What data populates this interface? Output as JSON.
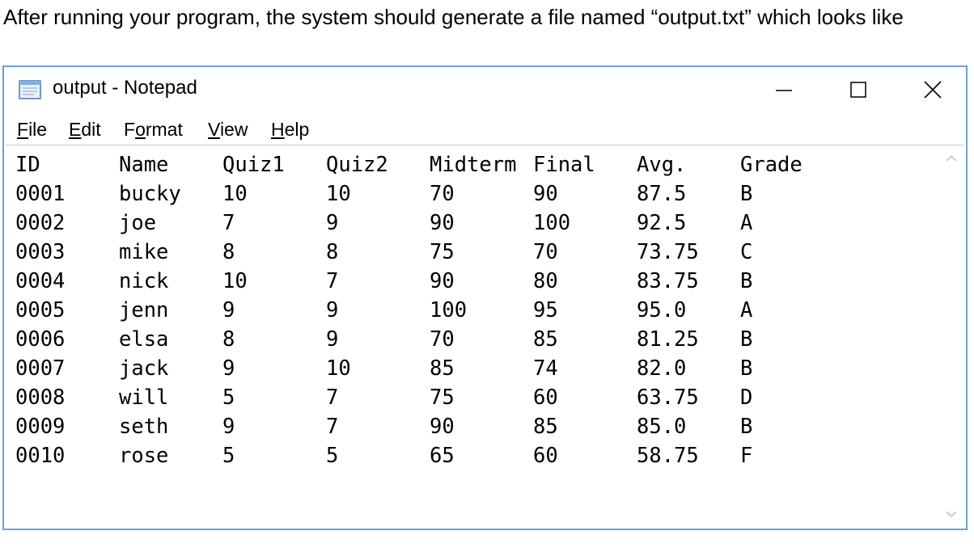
{
  "intro_text": "After running your program, the system should generate a file named “output.txt” which looks like",
  "window": {
    "title": "output - Notepad",
    "icon": "notepad-icon",
    "controls": {
      "minimize": "minimize-icon",
      "maximize": "maximize-icon",
      "close": "close-icon"
    }
  },
  "menu": {
    "items": [
      {
        "key": "file",
        "ul": "F",
        "rest": "ile"
      },
      {
        "key": "edit",
        "ul": "E",
        "rest": "dit"
      },
      {
        "key": "format",
        "pre": "F",
        "ul": "o",
        "rest": "rmat"
      },
      {
        "key": "view",
        "ul": "V",
        "rest": "iew"
      },
      {
        "key": "help",
        "ul": "H",
        "rest": "elp"
      }
    ]
  },
  "file": {
    "headers": [
      "ID",
      "Name",
      "Quiz1",
      "Quiz2",
      "Midterm",
      "Final",
      "Avg.",
      "Grade"
    ],
    "rows": [
      [
        "0001",
        "bucky",
        "10",
        "10",
        "70",
        "90",
        "87.5",
        "B"
      ],
      [
        "0002",
        "joe",
        "7",
        "9",
        "90",
        "100",
        "92.5",
        "A"
      ],
      [
        "0003",
        "mike",
        "8",
        "8",
        "75",
        "70",
        "73.75",
        "C"
      ],
      [
        "0004",
        "nick",
        "10",
        "7",
        "90",
        "80",
        "83.75",
        "B"
      ],
      [
        "0005",
        "jenn",
        "9",
        "9",
        "100",
        "95",
        "95.0",
        "A"
      ],
      [
        "0006",
        "elsa",
        "8",
        "9",
        "70",
        "85",
        "81.25",
        "B"
      ],
      [
        "0007",
        "jack",
        "9",
        "10",
        "85",
        "74",
        "82.0",
        "B"
      ],
      [
        "0008",
        "will",
        "5",
        "7",
        "75",
        "60",
        "63.75",
        "D"
      ],
      [
        "0009",
        "seth",
        "9",
        "7",
        "90",
        "85",
        "85.0",
        "B"
      ],
      [
        "0010",
        "rose",
        "5",
        "5",
        "65",
        "60",
        "58.75",
        "F"
      ]
    ]
  },
  "colors": {
    "window_border": "#6e9fd6",
    "scroll_arrow": "#c0c0c0"
  }
}
